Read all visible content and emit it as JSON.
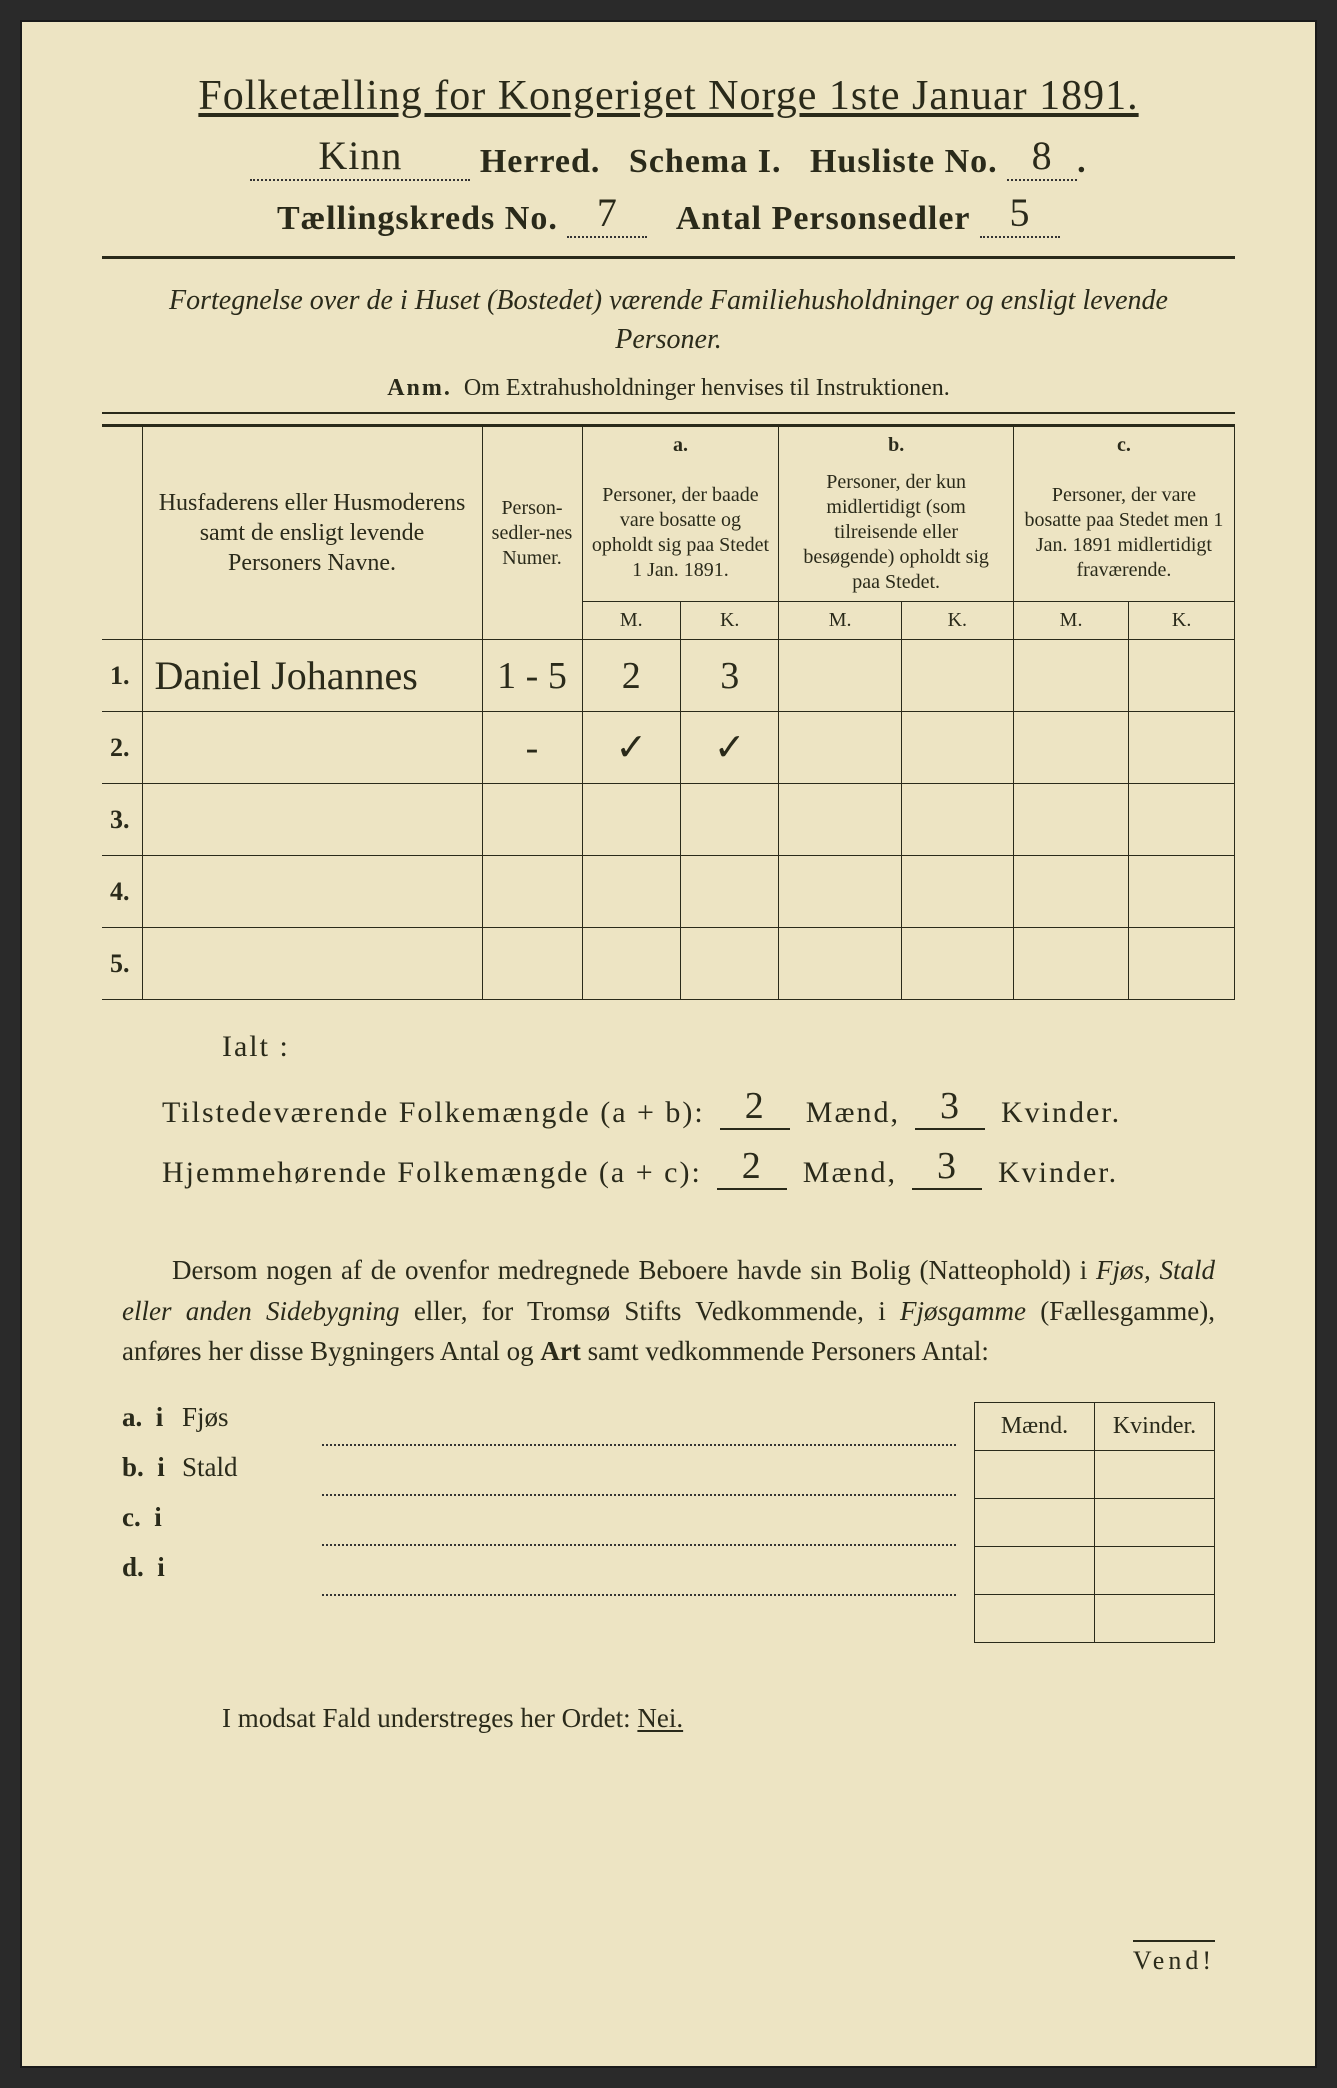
{
  "colors": {
    "paper": "#ede4c3",
    "ink": "#2a2a1a",
    "frame": "#1a1a1a"
  },
  "title": "Folketælling for Kongeriget Norge 1ste Januar 1891.",
  "header": {
    "herred_handwritten": "Kinn",
    "herred_label": "Herred.",
    "schema_label": "Schema I.",
    "husliste_label": "Husliste No.",
    "husliste_no": "8",
    "kreds_label": "Tællingskreds No.",
    "kreds_no": "7",
    "antal_label": "Antal Personsedler",
    "antal_no": "5"
  },
  "subtitle": "Fortegnelse over de i Huset (Bostedet) værende Familiehusholdninger og ensligt levende Personer.",
  "anm_label": "Anm.",
  "anm_text": "Om Extrahusholdninger henvises til Instruktionen.",
  "table": {
    "col_names": "Husfaderens eller Husmoderens samt de ensligt levende Personers Navne.",
    "col_numer": "Person-sedler-nes Numer.",
    "col_a_label": "a.",
    "col_a": "Personer, der baade vare bosatte og opholdt sig paa Stedet 1 Jan. 1891.",
    "col_b_label": "b.",
    "col_b": "Personer, der kun midlertidigt (som tilreisende eller besøgende) opholdt sig paa Stedet.",
    "col_c_label": "c.",
    "col_c": "Personer, der vare bosatte paa Stedet men 1 Jan. 1891 midlertidigt fraværende.",
    "m": "M.",
    "k": "K.",
    "rows": [
      {
        "num": "1.",
        "name": "Daniel Johannes",
        "psed": "1 - 5",
        "a_m": "2",
        "a_k": "3",
        "b_m": "",
        "b_k": "",
        "c_m": "",
        "c_k": ""
      },
      {
        "num": "2.",
        "name": "",
        "psed": "-",
        "a_m": "✓",
        "a_k": "✓",
        "b_m": "",
        "b_k": "",
        "c_m": "",
        "c_k": ""
      },
      {
        "num": "3.",
        "name": "",
        "psed": "",
        "a_m": "",
        "a_k": "",
        "b_m": "",
        "b_k": "",
        "c_m": "",
        "c_k": ""
      },
      {
        "num": "4.",
        "name": "",
        "psed": "",
        "a_m": "",
        "a_k": "",
        "b_m": "",
        "b_k": "",
        "c_m": "",
        "c_k": ""
      },
      {
        "num": "5.",
        "name": "",
        "psed": "",
        "a_m": "",
        "a_k": "",
        "b_m": "",
        "b_k": "",
        "c_m": "",
        "c_k": ""
      }
    ]
  },
  "ialt": "Ialt :",
  "summary": {
    "line1_label": "Tilstedeværende Folkemængde (a + b):",
    "line1_m": "2",
    "line1_k": "3",
    "line2_label": "Hjemmehørende Folkemængde (a + c):",
    "line2_m": "2",
    "line2_k": "3",
    "maend": "Mænd,",
    "kvinder": "Kvinder."
  },
  "paragraph": {
    "p1a": "Dersom nogen af de ovenfor medregnede Beboere havde sin Bolig (Natteophold) i ",
    "p1b": "Fjøs, Stald eller anden Sidebygning",
    "p1c": " eller, for Tromsø Stifts Vedkommende, i ",
    "p1d": "Fjøsgamme",
    "p1e": " (Fællesgamme), anføres her disse Bygningers Antal og ",
    "p1f": "Art",
    "p1g": " samt vedkommende Personers Antal:"
  },
  "sidebyg": {
    "rows": [
      {
        "lbl": "a.",
        "i": "i",
        "kind": "Fjøs"
      },
      {
        "lbl": "b.",
        "i": "i",
        "kind": "Stald"
      },
      {
        "lbl": "c.",
        "i": "i",
        "kind": ""
      },
      {
        "lbl": "d.",
        "i": "i",
        "kind": ""
      }
    ],
    "maend": "Mænd.",
    "kvinder": "Kvinder."
  },
  "nei": "I modsat Fald understreges her Ordet: ",
  "nei_word": "Nei.",
  "vend": "Vend!"
}
